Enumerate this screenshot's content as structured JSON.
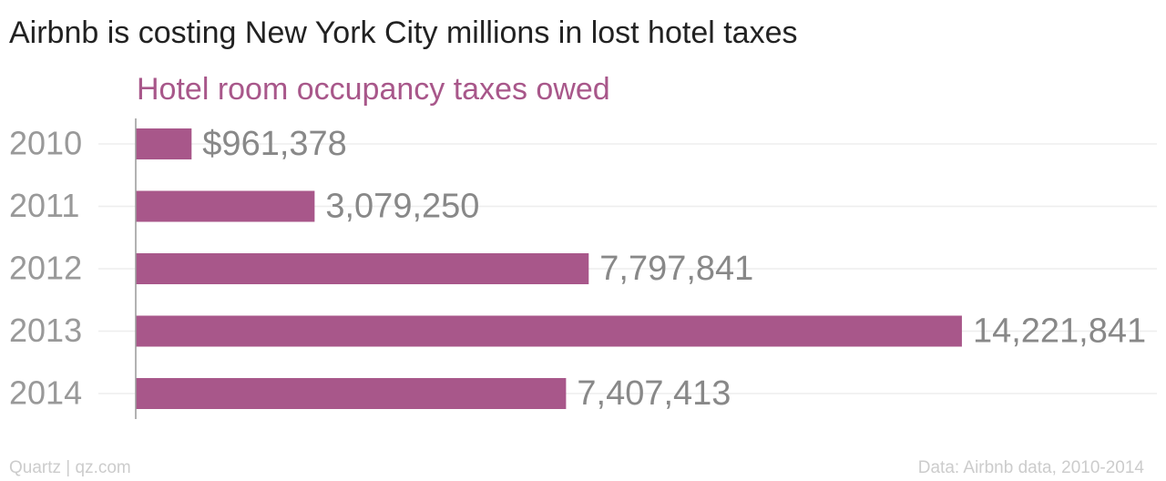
{
  "chart_data": {
    "type": "bar",
    "orientation": "horizontal",
    "title": "Airbnb is costing New York City millions in lost hotel taxes",
    "subtitle": "Hotel room occupancy taxes owed",
    "categories": [
      "2010",
      "2011",
      "2012",
      "2013",
      "2014"
    ],
    "values": [
      961378,
      3079250,
      7797841,
      14221841,
      7407413
    ],
    "value_labels": [
      "$961,378",
      "3,079,250",
      "7,797,841",
      "14,221,841",
      "7,407,413"
    ],
    "color": "#a8578a",
    "xlim": [
      0,
      17500000
    ],
    "grid": true,
    "source_left": "Quartz | qz.com",
    "source_right": "Data: Airbnb data, 2010-2014"
  }
}
